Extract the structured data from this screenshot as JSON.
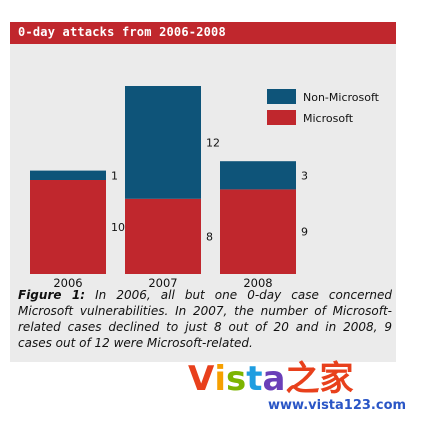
{
  "header": {
    "title": "0-day attacks from 2006-2008"
  },
  "chart_data": {
    "type": "bar",
    "stacked": true,
    "categories": [
      "2006",
      "2007",
      "2008"
    ],
    "series": [
      {
        "name": "Microsoft",
        "values": [
          10,
          8,
          9
        ],
        "color": "#c0272d"
      },
      {
        "name": "Non-Microsoft",
        "values": [
          1,
          12,
          3
        ],
        "color": "#0e5479"
      }
    ],
    "legend_position": "top-right",
    "grid": false,
    "ylim": [
      0,
      20
    ]
  },
  "caption": {
    "label": "Figure 1:",
    "text": "In 2006, all but one 0-day case concerned Microsoft vulnerabilities. In 2007, the number of Microsoft-related cases declined to just 8 out of 20 and in 2008, 9 cases out of 12 were Microsoft-related."
  },
  "watermark": {
    "logo_letters": [
      {
        "ch": "V",
        "color": "#e8401c"
      },
      {
        "ch": "i",
        "color": "#f6a000"
      },
      {
        "ch": "s",
        "color": "#7cb400"
      },
      {
        "ch": "t",
        "color": "#1e9de0"
      },
      {
        "ch": "a",
        "color": "#6a3fb8"
      },
      {
        "ch": "之",
        "color": "#e8401c"
      },
      {
        "ch": "家",
        "color": "#e8401c"
      }
    ],
    "url": "www.vista123.com"
  }
}
